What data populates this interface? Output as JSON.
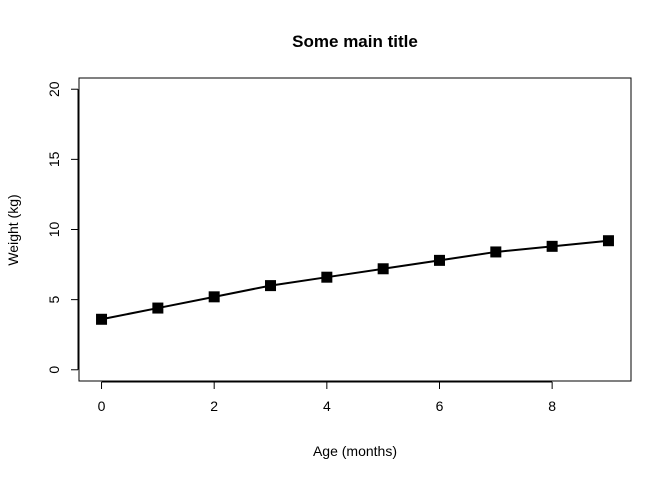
{
  "chart_data": {
    "type": "line",
    "title": "Some main title",
    "xlabel": "Age (months)",
    "ylabel": "Weight (kg)",
    "x": [
      0,
      1,
      2,
      3,
      4,
      5,
      6,
      7,
      8,
      9
    ],
    "series": [
      {
        "values": [
          3.6,
          4.4,
          5.2,
          6.0,
          6.6,
          7.2,
          7.8,
          8.4,
          8.8,
          9.2
        ]
      }
    ],
    "xlim": [
      -0.4,
      9.4
    ],
    "ylim": [
      -0.8,
      20.8
    ],
    "xticks": [
      0,
      2,
      4,
      6,
      8
    ],
    "yticks": [
      0,
      5,
      10,
      15,
      20
    ],
    "marker": "square",
    "grid": false,
    "legend": "none",
    "line_color": "#000000",
    "marker_color": "#000000"
  }
}
